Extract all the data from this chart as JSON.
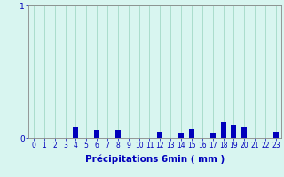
{
  "xlabel": "Précipitations 6min ( mm )",
  "hours": [
    0,
    1,
    2,
    3,
    4,
    5,
    6,
    7,
    8,
    9,
    10,
    11,
    12,
    13,
    14,
    15,
    16,
    17,
    18,
    19,
    20,
    21,
    22,
    23
  ],
  "values": [
    0,
    0,
    0,
    0,
    0.08,
    0,
    0.06,
    0,
    0.06,
    0,
    0,
    0,
    0.05,
    0,
    0.04,
    0.07,
    0,
    0.04,
    0.12,
    0.1,
    0.09,
    0,
    0,
    0.05
  ],
  "ylim": [
    0,
    1.0
  ],
  "yticks": [
    0,
    1
  ],
  "ytick_labels": [
    "0",
    "1"
  ],
  "bar_color": "#0000bb",
  "bg_color": "#d8f5f0",
  "grid_color": "#aaddcc",
  "tick_color": "#0000bb",
  "label_color": "#0000bb",
  "label_fontsize": 7.5,
  "tick_fontsize": 5.5,
  "ytick_fontsize": 6.5
}
